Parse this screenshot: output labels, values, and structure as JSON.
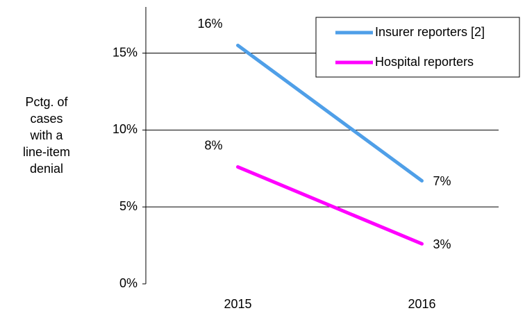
{
  "chart_data": {
    "type": "line",
    "ylabel": [
      "Pctg. of",
      "cases",
      "with a",
      "line-item",
      "denial"
    ],
    "categories": [
      "2015",
      "2016"
    ],
    "series": [
      {
        "name": "Insurer reporters [2]",
        "color": "#4f9fe8",
        "values": [
          15.5,
          6.7
        ],
        "value_labels": [
          "16%",
          "7%"
        ]
      },
      {
        "name": "Hospital reporters",
        "color": "#ff00ff",
        "values": [
          7.6,
          2.6
        ],
        "value_labels": [
          "8%",
          "3%"
        ]
      }
    ],
    "ylim": [
      0,
      18
    ],
    "yticks": [
      {
        "value": 0,
        "label": "0%"
      },
      {
        "value": 5,
        "label": "5%"
      },
      {
        "value": 10,
        "label": "10%"
      },
      {
        "value": 15,
        "label": "15%"
      }
    ],
    "grid": true,
    "legend": "top-right"
  }
}
